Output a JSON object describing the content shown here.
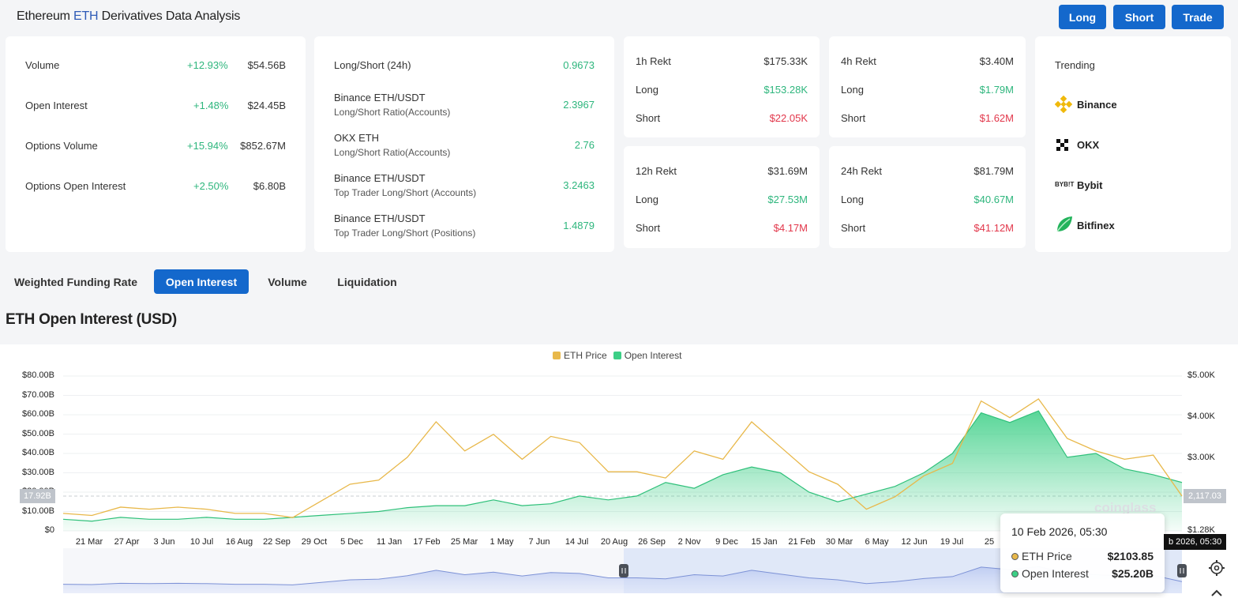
{
  "header": {
    "title_pre": "Ethereum ",
    "title_eth": "ETH",
    "title_post": " Derivatives Data Analysis",
    "buttons": [
      "Long",
      "Short",
      "Trade"
    ]
  },
  "stats": [
    {
      "label": "Volume",
      "change": "+12.93%",
      "value": "$54.56B"
    },
    {
      "label": "Open Interest",
      "change": "+1.48%",
      "value": "$24.45B"
    },
    {
      "label": "Options Volume",
      "change": "+15.94%",
      "value": "$852.67M"
    },
    {
      "label": "Options Open Interest",
      "change": "+2.50%",
      "value": "$6.80B"
    }
  ],
  "ratios": [
    {
      "label": "Long/Short (24h)",
      "sub": "",
      "value": "0.9673"
    },
    {
      "label": "Binance ETH/USDT",
      "sub": "Long/Short Ratio(Accounts)",
      "value": "2.3967"
    },
    {
      "label": "OKX ETH",
      "sub": "Long/Short Ratio(Accounts)",
      "value": "2.76"
    },
    {
      "label": "Binance ETH/USDT",
      "sub": "Top Trader Long/Short (Accounts)",
      "value": "3.2463"
    },
    {
      "label": "Binance ETH/USDT",
      "sub": "Top Trader Long/Short (Positions)",
      "value": "1.4879"
    }
  ],
  "rekt": [
    {
      "title": "1h Rekt",
      "total": "$175.33K",
      "long_label": "Long",
      "long": "$153.28K",
      "short_label": "Short",
      "short": "$22.05K"
    },
    {
      "title": "4h Rekt",
      "total": "$3.40M",
      "long_label": "Long",
      "long": "$1.79M",
      "short_label": "Short",
      "short": "$1.62M"
    },
    {
      "title": "12h Rekt",
      "total": "$31.69M",
      "long_label": "Long",
      "long": "$27.53M",
      "short_label": "Short",
      "short": "$4.17M"
    },
    {
      "title": "24h Rekt",
      "total": "$81.79M",
      "long_label": "Long",
      "long": "$40.67M",
      "short_label": "Short",
      "short": "$41.12M"
    }
  ],
  "trending": {
    "title": "Trending",
    "items": [
      "Binance",
      "OKX",
      "Bybit",
      "Bitfinex"
    ],
    "bybit_logo_text": "BYB!T"
  },
  "tabs": [
    "Weighted Funding Rate",
    "Open Interest",
    "Volume",
    "Liquidation"
  ],
  "chart_title": "ETH Open Interest (USD)",
  "colors": {
    "accent": "#1468cc",
    "positive": "#2eb67d",
    "negative": "#e2374b",
    "price_line": "#e8b84a",
    "oi_fill": "#3ccf86"
  },
  "tooltip": {
    "date": "10 Feb 2026, 05:30",
    "price_label": "ETH Price",
    "price_value": "$2103.85",
    "oi_label": "Open Interest",
    "oi_value": "$25.20B"
  },
  "pointers": {
    "x_label": "b 2026, 05:30",
    "right_value": "2,117.03",
    "left_value": "17.92B"
  },
  "watermark": "coinglass",
  "chart_data": {
    "type": "area",
    "title": "ETH Open Interest (USD)",
    "legend": [
      "ETH Price",
      "Open Interest"
    ],
    "legend_position": "top-center",
    "grid": true,
    "y_left_ticks": [
      "$80.00B",
      "$70.00B",
      "$60.00B",
      "$50.00B",
      "$40.00B",
      "$30.00B",
      "$20.00B",
      "$10.00B",
      "$0"
    ],
    "y_right_ticks": [
      "$5.00K",
      "$4.00K",
      "$3.00K",
      "$1.28K"
    ],
    "ylim_left": [
      0,
      80
    ],
    "ylim_right": [
      1280,
      5000
    ],
    "x_ticks": [
      "21 Mar",
      "27 Apr",
      "3 Jun",
      "10 Jul",
      "16 Aug",
      "22 Sep",
      "29 Oct",
      "5 Dec",
      "11 Jan",
      "17 Feb",
      "25 Mar",
      "1 May",
      "7 Jun",
      "14 Jul",
      "20 Aug",
      "26 Sep",
      "2 Nov",
      "9 Dec",
      "15 Jan",
      "21 Feb",
      "30 Mar",
      "6 May",
      "12 Jun",
      "19 Jul",
      "25"
    ],
    "series": [
      {
        "name": "Open Interest",
        "axis": "left",
        "values": [
          6,
          5,
          7,
          6,
          6,
          7,
          6,
          6,
          7,
          8,
          9,
          10,
          12,
          13,
          13,
          16,
          13,
          14,
          18,
          16,
          18,
          25,
          22,
          29,
          33,
          30,
          20,
          15,
          19,
          23,
          30,
          40,
          61,
          56,
          62,
          38,
          40,
          32,
          29,
          25
        ]
      },
      {
        "name": "ETH Price",
        "axis": "right",
        "values": [
          1700,
          1650,
          1850,
          1800,
          1850,
          1800,
          1700,
          1700,
          1600,
          2000,
          2400,
          2500,
          3050,
          3900,
          3200,
          3600,
          3000,
          3550,
          3400,
          2700,
          2700,
          2550,
          3200,
          3000,
          3900,
          3300,
          2700,
          2400,
          1800,
          2100,
          2600,
          2900,
          4400,
          4000,
          4450,
          3500,
          3200,
          3000,
          3100,
          2117
        ]
      }
    ]
  }
}
